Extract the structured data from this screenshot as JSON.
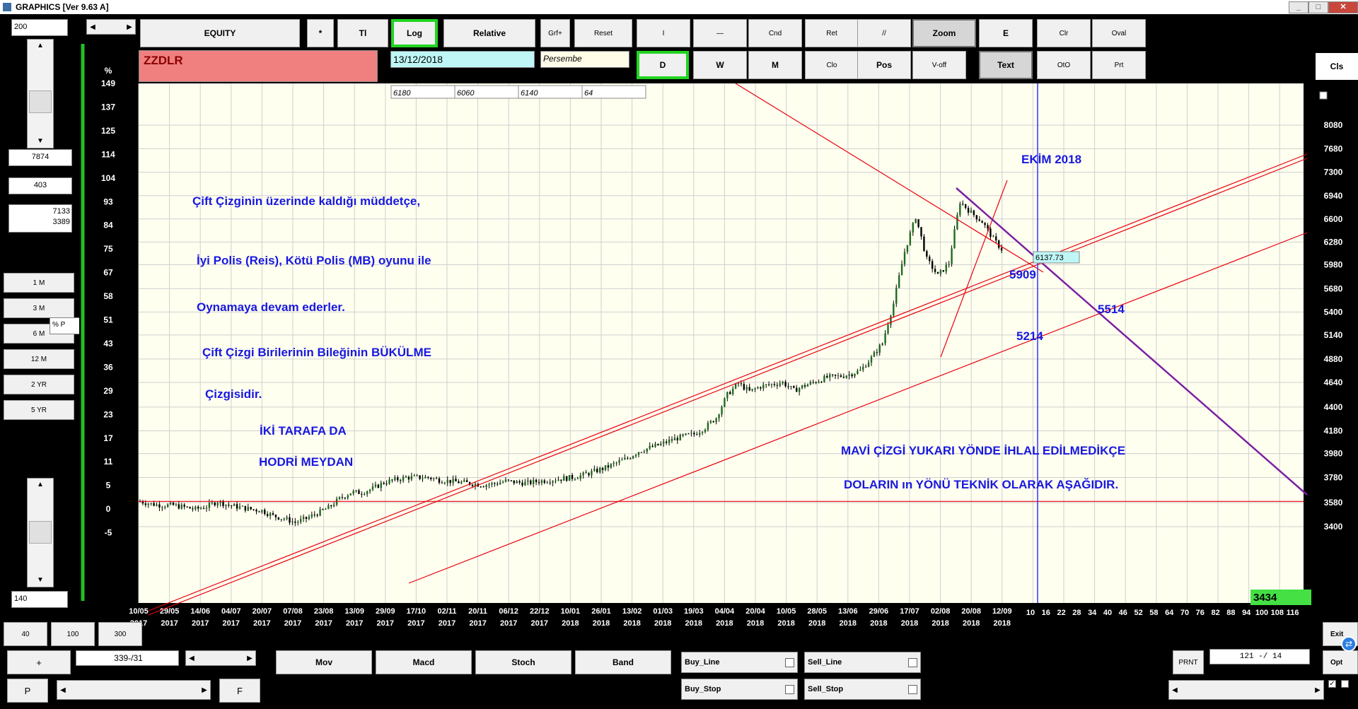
{
  "window": {
    "title": "GRAPHICS  [Ver 9.63 A]",
    "min": "_",
    "max": "□",
    "close": "✕"
  },
  "toolbar": {
    "row1": [
      "EQUITY",
      "*",
      "Tl",
      "Log",
      "Relative",
      "Grf+",
      "Reset",
      "I",
      "—",
      "Cnd",
      "Ret",
      "//",
      "Zoom",
      "E",
      "Clr",
      "Oval"
    ],
    "row2": [
      "D",
      "W",
      "M",
      "Clo",
      "Pos",
      "V-off",
      "Text",
      "OtO",
      "Prt"
    ],
    "cls": "Cls"
  },
  "symbol": {
    "name": "ZZDLR",
    "date": "13/12/2018",
    "day": "Persembe",
    "quotes": [
      "6180",
      "6060",
      "6140",
      "64"
    ]
  },
  "left_panel": {
    "top_value": "200",
    "v1": "7874",
    "v2": "403",
    "v3a": "7133",
    "v3b": "3389",
    "periods": [
      "1 M",
      "3 M",
      "6 M",
      "12 M",
      "2 YR",
      "5 YR"
    ],
    "pct_label": "% P",
    "bottom_value": "140"
  },
  "bottom": {
    "nums": [
      "40",
      "100",
      "300"
    ],
    "plus": "+",
    "pos": "339-/31",
    "p": "P",
    "f": "F",
    "indicators": [
      "Mov",
      "Macd",
      "Stoch",
      "Band"
    ],
    "signals": [
      "Buy_Line",
      "Sell_Line",
      "Buy_Stop",
      "Sell_Stop"
    ],
    "prnt": "PRNT",
    "ratio": "121 -/ 14",
    "exit": "Exit",
    "opt": "Opt"
  },
  "chart_data": {
    "type": "candlestick",
    "symbol": "ZZDLR",
    "pct_axis": {
      "label": "%",
      "ticks": [
        149,
        137,
        125,
        114,
        104,
        93,
        84,
        75,
        67,
        58,
        51,
        43,
        36,
        29,
        23,
        17,
        11,
        5,
        0,
        -5
      ]
    },
    "price_axis": {
      "scale": "log",
      "ticks": [
        8080,
        7680,
        7300,
        6940,
        6600,
        6280,
        5980,
        5680,
        5400,
        5140,
        4880,
        4640,
        4400,
        4180,
        3980,
        3780,
        3580,
        3400
      ]
    },
    "x_ticks": [
      {
        "d": "10/05",
        "y": "2017"
      },
      {
        "d": "29/05",
        "y": "2017"
      },
      {
        "d": "14/06",
        "y": "2017"
      },
      {
        "d": "04/07",
        "y": "2017"
      },
      {
        "d": "20/07",
        "y": "2017"
      },
      {
        "d": "07/08",
        "y": "2017"
      },
      {
        "d": "23/08",
        "y": "2017"
      },
      {
        "d": "13/09",
        "y": "2017"
      },
      {
        "d": "29/09",
        "y": "2017"
      },
      {
        "d": "17/10",
        "y": "2017"
      },
      {
        "d": "02/11",
        "y": "2017"
      },
      {
        "d": "20/11",
        "y": "2017"
      },
      {
        "d": "06/12",
        "y": "2017"
      },
      {
        "d": "22/12",
        "y": "2017"
      },
      {
        "d": "10/01",
        "y": "2018"
      },
      {
        "d": "26/01",
        "y": "2018"
      },
      {
        "d": "13/02",
        "y": "2018"
      },
      {
        "d": "01/03",
        "y": "2018"
      },
      {
        "d": "19/03",
        "y": "2018"
      },
      {
        "d": "04/04",
        "y": "2018"
      },
      {
        "d": "20/04",
        "y": "2018"
      },
      {
        "d": "10/05",
        "y": "2018"
      },
      {
        "d": "28/05",
        "y": "2018"
      },
      {
        "d": "13/06",
        "y": "2018"
      },
      {
        "d": "29/06",
        "y": "2018"
      },
      {
        "d": "17/07",
        "y": "2018"
      },
      {
        "d": "02/08",
        "y": "2018"
      },
      {
        "d": "20/08",
        "y": "2018"
      },
      {
        "d": "12/09",
        "y": "2018"
      }
    ],
    "future_ticks": [
      "10",
      "16",
      "22",
      "28",
      "34",
      "40",
      "46",
      "52",
      "58",
      "64",
      "70",
      "76",
      "82",
      "88",
      "94",
      "100",
      "108",
      "116"
    ],
    "price_path": [
      3590,
      3570,
      3560,
      3560,
      3545,
      3530,
      3550,
      3590,
      3560,
      3545,
      3530,
      3520,
      3480,
      3460,
      3430,
      3460,
      3500,
      3540,
      3610,
      3660,
      3660,
      3690,
      3740,
      3760,
      3780,
      3780,
      3780,
      3760,
      3750,
      3740,
      3730,
      3720,
      3730,
      3750,
      3740,
      3735,
      3750,
      3760,
      3770,
      3780,
      3800,
      3830,
      3860,
      3900,
      3940,
      4000,
      4030,
      4060,
      4100,
      4130,
      4150,
      4210,
      4300,
      4520,
      4630,
      4550,
      4600,
      4620,
      4640,
      4560,
      4610,
      4650,
      4690,
      4700,
      4720,
      4760,
      4890,
      5050,
      5500,
      6150,
      6630,
      6050,
      5840,
      6000,
      6850,
      6690,
      6560,
      6320,
      6138
    ],
    "current_price": "6137.73",
    "last_box": "3434",
    "annotations": {
      "ekim": "EKİM 2018",
      "p5909": "5909",
      "p5514": "5514",
      "p5214": "5214",
      "t1": "Çift Çizginin üzerinde kaldığı müddetçe,",
      "t2": "İyi Polis (Reis), Kötü Polis (MB) oyunu ile",
      "t3": "Oynamaya devam ederler.",
      "t4": "Çift Çizgi Birilerinin Bileğinin BÜKÜLME",
      "t5": "Çizgisidir.",
      "t6": "İKİ   TARAFA  DA",
      "t7": "HODRİ  MEYDAN",
      "t8": "MAVİ  ÇİZGİ  YUKARI YÖNDE İHLAL EDİLMEDİKÇE",
      "t9": "DOLARIN ın YÖNÜ TEKNİK OLARAK  AŞAĞIDIR."
    },
    "colors": {
      "bg": "#fffff0",
      "grid": "#cfcfcf",
      "trend": "#e8000b",
      "purple": "#7b1fa2",
      "blue": "#3333ff",
      "text": "#1818e0",
      "up": "#1e6b1e",
      "down": "#000000"
    }
  }
}
